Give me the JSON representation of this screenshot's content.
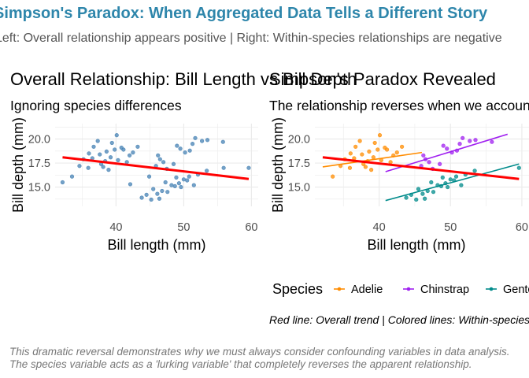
{
  "header": {
    "title": "Simpson's Paradox: When Aggregated Data Tells a Different Story",
    "subtitle": "Left: Overall relationship appears positive | Right: Within-species relationships are negative"
  },
  "caption": {
    "line1": "This dramatic reversal demonstrates why we must always consider confounding variables in data analysis.",
    "line2": "The species variable acts as a 'lurking variable' that completely reverses the apparent relationship."
  },
  "colors": {
    "title": "#2E86AB",
    "overall_points": "#4682B4",
    "trend_line": "#FF0000",
    "adelie": "#FF8C00",
    "chinstrap": "#A020F0",
    "gentoo": "#008B8B",
    "grid": "#EBEBEB"
  },
  "chart_data": [
    {
      "type": "scatter",
      "title": "Overall Relationship: Bill Length vs Bill Depth",
      "subtitle": "Ignoring species differences",
      "xlabel": "Bill length (mm)",
      "ylabel": "Bill depth (mm)",
      "xlim": [
        31,
        61
      ],
      "ylim": [
        13,
        21.6
      ],
      "xticks": [
        40,
        50,
        60
      ],
      "yticks": [
        15.0,
        17.5,
        20.0
      ],
      "grid": true,
      "series": [
        {
          "group": "all",
          "points": [
            [
              36.5,
              18.0
            ],
            [
              37.8,
              17.4
            ],
            [
              38.6,
              18.7
            ],
            [
              35.2,
              17.9
            ],
            [
              39.4,
              19.6
            ],
            [
              40.3,
              17.8
            ],
            [
              41.1,
              18.9
            ],
            [
              38.1,
              17.1
            ],
            [
              36.7,
              19.2
            ],
            [
              42.0,
              18.3
            ],
            [
              39.2,
              18.1
            ],
            [
              37.6,
              18.4
            ],
            [
              40.8,
              19.1
            ],
            [
              34.6,
              17.2
            ],
            [
              38.9,
              16.8
            ],
            [
              41.6,
              17.6
            ],
            [
              36.0,
              18.5
            ],
            [
              39.8,
              18.9
            ],
            [
              37.3,
              19.8
            ],
            [
              42.5,
              18.6
            ],
            [
              33.5,
              16.1
            ],
            [
              40.1,
              20.4
            ],
            [
              38.4,
              17.7
            ],
            [
              35.9,
              17.0
            ],
            [
              43.2,
              19.2
            ],
            [
              46.5,
              17.9
            ],
            [
              49.5,
              19.0
            ],
            [
              50.2,
              18.6
            ],
            [
              47.0,
              17.6
            ],
            [
              51.3,
              19.5
            ],
            [
              45.9,
              17.2
            ],
            [
              52.7,
              19.8
            ],
            [
              48.5,
              17.4
            ],
            [
              50.9,
              18.8
            ],
            [
              49.0,
              19.3
            ],
            [
              53.5,
              19.9
            ],
            [
              46.2,
              18.3
            ],
            [
              51.7,
              20.1
            ],
            [
              55.8,
              19.7
            ],
            [
              47.5,
              16.9
            ],
            [
              46.1,
              14.3
            ],
            [
              48.7,
              15.1
            ],
            [
              50.0,
              15.8
            ],
            [
              47.6,
              14.5
            ],
            [
              45.2,
              13.7
            ],
            [
              49.3,
              15.4
            ],
            [
              50.8,
              16.1
            ],
            [
              44.5,
              14.2
            ],
            [
              48.2,
              15.2
            ],
            [
              46.8,
              14.6
            ],
            [
              52.1,
              16.3
            ],
            [
              49.6,
              15.0
            ],
            [
              43.8,
              13.9
            ],
            [
              47.3,
              15.5
            ],
            [
              50.5,
              15.7
            ],
            [
              45.5,
              14.8
            ],
            [
              48.9,
              16.0
            ],
            [
              51.5,
              15.2
            ],
            [
              46.4,
              13.8
            ],
            [
              53.4,
              16.7
            ],
            [
              59.6,
              17.0
            ],
            [
              55.9,
              17.0
            ],
            [
              44.9,
              16.1
            ],
            [
              42.1,
              15.3
            ],
            [
              32.1,
              15.5
            ]
          ]
        }
      ],
      "trend_lines": [
        {
          "group": "overall",
          "x": [
            32.1,
            59.6
          ],
          "y": [
            18.1,
            15.85
          ]
        }
      ]
    },
    {
      "type": "scatter",
      "title": "Simpson's Paradox Revealed",
      "subtitle": "The relationship reverses when we account for species",
      "xlabel": "Bill length (mm)",
      "ylabel": "Bill depth (mm)",
      "xlim": [
        31,
        61
      ],
      "ylim": [
        13,
        21.6
      ],
      "xticks": [
        40,
        50,
        60
      ],
      "yticks": [
        15.0,
        17.5,
        20.0
      ],
      "grid": true,
      "legend": {
        "title": "Species",
        "position": "bottom",
        "entries": [
          "Adelie",
          "Chinstrap",
          "Gentoo"
        ]
      },
      "note": "Red line: Overall trend | Colored lines: Within-species trends",
      "series": [
        {
          "name": "Adelie",
          "points": [
            [
              36.5,
              18.0
            ],
            [
              37.8,
              17.4
            ],
            [
              38.6,
              18.7
            ],
            [
              35.2,
              17.9
            ],
            [
              39.4,
              19.6
            ],
            [
              40.3,
              17.8
            ],
            [
              41.1,
              18.9
            ],
            [
              38.1,
              17.1
            ],
            [
              36.7,
              19.2
            ],
            [
              42.0,
              18.3
            ],
            [
              39.2,
              18.1
            ],
            [
              37.6,
              18.4
            ],
            [
              40.8,
              19.1
            ],
            [
              34.6,
              17.2
            ],
            [
              38.9,
              16.8
            ],
            [
              41.6,
              17.6
            ],
            [
              36.0,
              18.5
            ],
            [
              39.8,
              18.9
            ],
            [
              37.3,
              19.8
            ],
            [
              42.5,
              18.6
            ],
            [
              33.5,
              16.1
            ],
            [
              40.1,
              20.4
            ],
            [
              38.4,
              17.7
            ],
            [
              35.9,
              17.0
            ],
            [
              43.2,
              19.2
            ]
          ]
        },
        {
          "name": "Chinstrap",
          "points": [
            [
              46.5,
              17.9
            ],
            [
              49.5,
              19.0
            ],
            [
              50.2,
              18.6
            ],
            [
              47.0,
              17.6
            ],
            [
              51.3,
              19.5
            ],
            [
              45.9,
              17.2
            ],
            [
              52.7,
              19.8
            ],
            [
              48.5,
              17.4
            ],
            [
              50.9,
              18.8
            ],
            [
              49.0,
              19.3
            ],
            [
              53.5,
              19.9
            ],
            [
              46.2,
              18.3
            ],
            [
              51.7,
              20.1
            ],
            [
              55.8,
              19.7
            ],
            [
              47.5,
              16.9
            ]
          ]
        },
        {
          "name": "Gentoo",
          "points": [
            [
              46.1,
              14.3
            ],
            [
              48.7,
              15.1
            ],
            [
              50.0,
              15.8
            ],
            [
              47.6,
              14.5
            ],
            [
              45.2,
              13.7
            ],
            [
              49.3,
              15.4
            ],
            [
              50.8,
              16.1
            ],
            [
              44.5,
              14.2
            ],
            [
              48.2,
              15.2
            ],
            [
              46.8,
              14.6
            ],
            [
              52.1,
              16.3
            ],
            [
              49.6,
              15.0
            ],
            [
              43.8,
              13.9
            ],
            [
              47.3,
              15.5
            ],
            [
              50.5,
              15.7
            ],
            [
              45.5,
              14.8
            ],
            [
              48.9,
              16.0
            ],
            [
              51.5,
              15.2
            ],
            [
              46.4,
              13.8
            ],
            [
              53.4,
              16.7
            ],
            [
              59.6,
              17.0
            ]
          ]
        }
      ],
      "trend_lines": [
        {
          "group": "Adelie",
          "x": [
            32.1,
            46.0
          ],
          "y": [
            17.1,
            18.6
          ]
        },
        {
          "group": "Chinstrap",
          "x": [
            40.9,
            58.0
          ],
          "y": [
            16.6,
            20.5
          ]
        },
        {
          "group": "Gentoo",
          "x": [
            40.9,
            59.6
          ],
          "y": [
            13.6,
            17.4
          ]
        },
        {
          "group": "overall",
          "x": [
            32.1,
            59.6
          ],
          "y": [
            18.1,
            15.85
          ]
        }
      ]
    }
  ]
}
